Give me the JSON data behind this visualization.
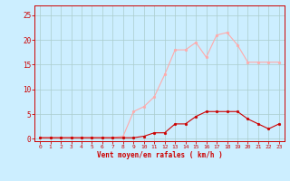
{
  "x": [
    0,
    1,
    2,
    3,
    4,
    5,
    6,
    7,
    8,
    9,
    10,
    11,
    12,
    13,
    14,
    15,
    16,
    17,
    18,
    19,
    20,
    21,
    22,
    23
  ],
  "y_rafales": [
    0.2,
    0.2,
    0.2,
    0.2,
    0.2,
    0.2,
    0.2,
    0.2,
    0.5,
    5.5,
    6.5,
    8.5,
    13.0,
    18.0,
    18.0,
    19.5,
    16.5,
    21.0,
    21.5,
    19.0,
    15.5,
    15.5,
    15.5,
    15.5
  ],
  "y_moyen": [
    0.2,
    0.2,
    0.2,
    0.2,
    0.2,
    0.2,
    0.2,
    0.2,
    0.2,
    0.2,
    0.5,
    1.2,
    1.2,
    3.0,
    3.0,
    4.5,
    5.5,
    5.5,
    5.5,
    5.5,
    4.0,
    3.0,
    2.0,
    3.0
  ],
  "color_rafales": "#ffaaaa",
  "color_moyen": "#cc0000",
  "bg_color": "#cceeff",
  "grid_color": "#aacccc",
  "xlabel": "Vent moyen/en rafales ( km/h )",
  "xlabel_color": "#cc0000",
  "tick_color": "#cc0000",
  "spine_color": "#cc0000",
  "ylim": [
    -0.5,
    27
  ],
  "xlim": [
    -0.5,
    23.5
  ],
  "yticks": [
    0,
    5,
    10,
    15,
    20,
    25
  ],
  "xticks": [
    0,
    1,
    2,
    3,
    4,
    5,
    6,
    7,
    8,
    9,
    10,
    11,
    12,
    13,
    14,
    15,
    16,
    17,
    18,
    19,
    20,
    21,
    22,
    23
  ],
  "marker_size": 2.0,
  "line_width": 0.8
}
